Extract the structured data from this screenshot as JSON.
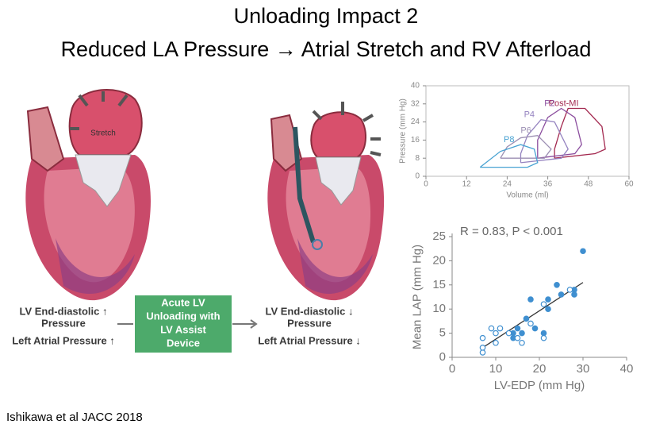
{
  "slide": {
    "title": [
      "Unloading Impact 2",
      "Reduced LA Pressure → Atrial Stretch and RV Afterload"
    ],
    "citation": "Ishikawa et al JACC 2018",
    "stretch": "Stretch",
    "before": [
      "LV End-diastolic ↑",
      "Pressure",
      "Left Atrial Pressure ↑"
    ],
    "device": [
      "Acute LV",
      "Unloading with",
      "LV Assist",
      "Device"
    ],
    "after": [
      "LV End-diastolic ↓",
      "Pressure",
      "Left Atrial Pressure ↓"
    ]
  },
  "chart_data": [
    {
      "type": "line",
      "xlabel": "Volume (ml)",
      "ylabel": "Pressure (mm Hg)",
      "xlim": [
        0,
        60
      ],
      "xticks": [
        0,
        12,
        24,
        36,
        48,
        60
      ],
      "ylim": [
        0,
        40
      ],
      "yticks": [
        0,
        8,
        16,
        24,
        32,
        40
      ],
      "series": [
        {
          "name": "Post-MI",
          "color": "#a3284f",
          "x": [
            38,
            50,
            53,
            52,
            47,
            42,
            40,
            38,
            38
          ],
          "values": [
            8,
            10,
            12,
            22,
            30,
            30,
            22,
            12,
            8
          ]
        },
        {
          "name": "P2",
          "color": "#8b4d9e",
          "x": [
            33,
            44,
            46,
            44,
            40,
            36,
            33,
            33
          ],
          "values": [
            8,
            10,
            14,
            26,
            30,
            26,
            16,
            8
          ]
        },
        {
          "name": "P4",
          "color": "#9583c0",
          "x": [
            28,
            40,
            42,
            38,
            34,
            30,
            28,
            28
          ],
          "values": [
            6,
            8,
            12,
            24,
            25,
            18,
            10,
            6
          ]
        },
        {
          "name": "P6",
          "color": "#9c8fb3",
          "x": [
            22,
            35,
            37,
            33,
            28,
            24,
            22
          ],
          "values": [
            8,
            8,
            12,
            18,
            17,
            13,
            8
          ]
        },
        {
          "name": "P8",
          "color": "#48a2d2",
          "x": [
            16,
            30,
            33,
            32,
            28,
            22,
            16
          ],
          "values": [
            4,
            4,
            6,
            12,
            14,
            11,
            4
          ]
        }
      ]
    },
    {
      "type": "scatter",
      "xlabel": "LV-EDP (mm Hg)",
      "ylabel": "Mean LAP (mm Hg)",
      "annotation": "R = 0.83, P < 0.001",
      "xlim": [
        0,
        40
      ],
      "xticks": [
        0,
        10,
        20,
        30,
        40
      ],
      "ylim": [
        0,
        25
      ],
      "yticks": [
        0,
        5,
        10,
        15,
        20,
        25
      ],
      "color": "#3f8fd0",
      "fit": {
        "x": [
          7,
          30
        ],
        "values": [
          2,
          15.5
        ]
      },
      "series": [
        {
          "marker": "filled",
          "x": [
            14,
            15,
            17,
            18,
            19,
            21,
            22,
            22,
            24,
            25,
            28,
            28,
            30,
            14,
            16
          ],
          "values": [
            5,
            6,
            8,
            12,
            6,
            5,
            10,
            12,
            15,
            13,
            13,
            14,
            22,
            4,
            5
          ]
        },
        {
          "marker": "open",
          "x": [
            7,
            7,
            7,
            9,
            10,
            10,
            11,
            13,
            15,
            16,
            18,
            21,
            21,
            27
          ],
          "values": [
            1,
            2,
            4,
            6,
            3,
            5,
            6,
            5,
            4,
            3,
            7,
            4,
            11,
            14
          ]
        }
      ]
    }
  ]
}
